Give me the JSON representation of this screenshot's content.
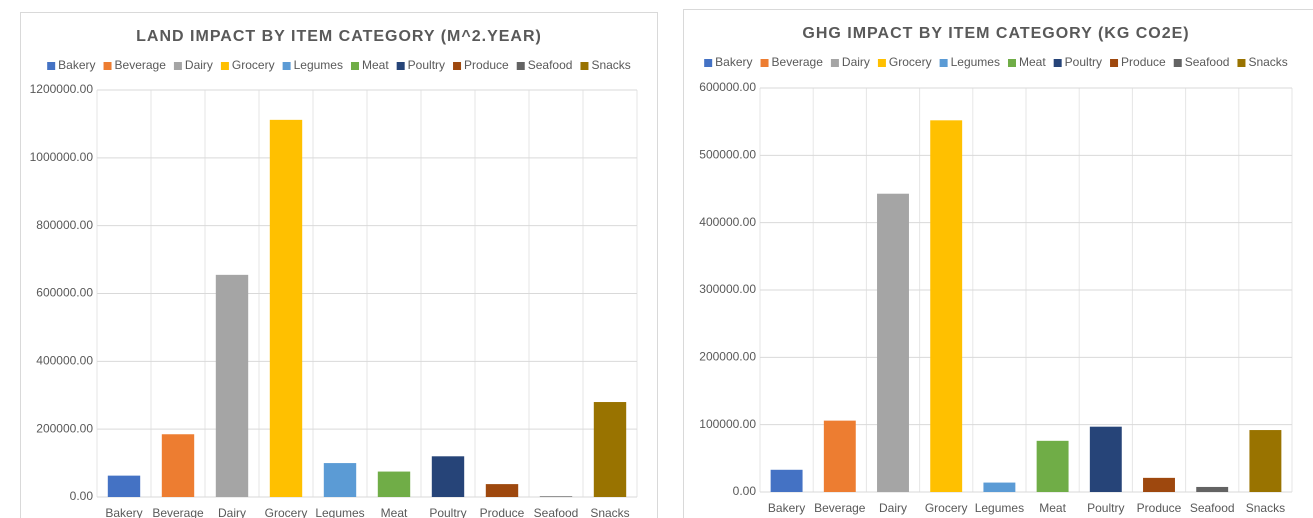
{
  "chart_data": [
    {
      "type": "bar",
      "title": "LAND IMPACT BY ITEM CATEGORY (M^2.YEAR)",
      "categories": [
        "Bakery",
        "Beverage",
        "Dairy",
        "Grocery",
        "Legumes",
        "Meat",
        "Poultry",
        "Produce",
        "Seafood",
        "Snacks"
      ],
      "values": [
        63000,
        185000,
        655000,
        1112000,
        100000,
        75000,
        120000,
        38000,
        2000,
        280000
      ],
      "colors": [
        "#4472c4",
        "#ed7d31",
        "#a5a5a5",
        "#ffc000",
        "#5b9bd5",
        "#70ad47",
        "#264478",
        "#9e480e",
        "#636363",
        "#997300"
      ],
      "ylim": [
        0,
        1200000
      ],
      "yticks": [
        {
          "value": 0,
          "label": "0.00"
        },
        {
          "value": 200000,
          "label": "200000.00"
        },
        {
          "value": 400000,
          "label": "400000.00"
        },
        {
          "value": 600000,
          "label": "600000.00"
        },
        {
          "value": 800000,
          "label": "800000.00"
        },
        {
          "value": 1000000,
          "label": "1000000.00"
        },
        {
          "value": 1200000,
          "label": "1200000.00"
        }
      ],
      "grid": true,
      "legend": "top"
    },
    {
      "type": "bar",
      "title": "GHG IMPACT BY ITEM CATEGORY (KG CO2E)",
      "categories": [
        "Bakery",
        "Beverage",
        "Dairy",
        "Grocery",
        "Legumes",
        "Meat",
        "Poultry",
        "Produce",
        "Seafood",
        "Snacks"
      ],
      "values": [
        33000,
        106000,
        443000,
        552000,
        14000,
        76000,
        97000,
        21000,
        7500,
        92000
      ],
      "colors": [
        "#4472c4",
        "#ed7d31",
        "#a5a5a5",
        "#ffc000",
        "#5b9bd5",
        "#70ad47",
        "#264478",
        "#9e480e",
        "#636363",
        "#997300"
      ],
      "ylim": [
        0,
        600000
      ],
      "yticks": [
        {
          "value": 0,
          "label": "0.00"
        },
        {
          "value": 100000,
          "label": "100000.00"
        },
        {
          "value": 200000,
          "label": "200000.00"
        },
        {
          "value": 300000,
          "label": "300000.00"
        },
        {
          "value": 400000,
          "label": "400000.00"
        },
        {
          "value": 500000,
          "label": "500000.00"
        },
        {
          "value": 600000,
          "label": "600000.00"
        }
      ],
      "grid": true,
      "legend": "top"
    }
  ]
}
